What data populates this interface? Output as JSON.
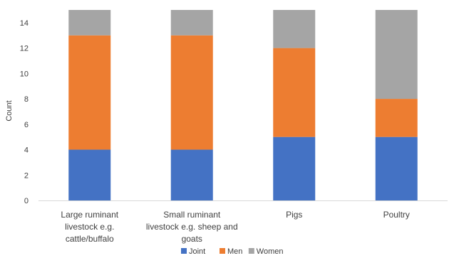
{
  "chart_data": {
    "type": "bar",
    "stacked": true,
    "title": "",
    "xlabel": "",
    "ylabel": "Count",
    "ylim": [
      0,
      15
    ],
    "yticks": [
      0,
      2,
      4,
      6,
      8,
      10,
      12,
      14
    ],
    "grid": false,
    "legend_position": "bottom",
    "categories": [
      [
        "Large ruminant",
        "livestock e.g.",
        "cattle/buffalo"
      ],
      [
        "Small ruminant",
        "livestock e.g. sheep and",
        "goats"
      ],
      [
        "Pigs"
      ],
      [
        "Poultry"
      ]
    ],
    "series": [
      {
        "name": "Joint",
        "color": "#4472c4",
        "values": [
          4,
          4,
          5,
          5
        ]
      },
      {
        "name": "Men",
        "color": "#ed7d31",
        "values": [
          9,
          9,
          7,
          3
        ]
      },
      {
        "name": "Women",
        "color": "#a5a5a5",
        "values": [
          2,
          2,
          3,
          7
        ]
      }
    ]
  }
}
